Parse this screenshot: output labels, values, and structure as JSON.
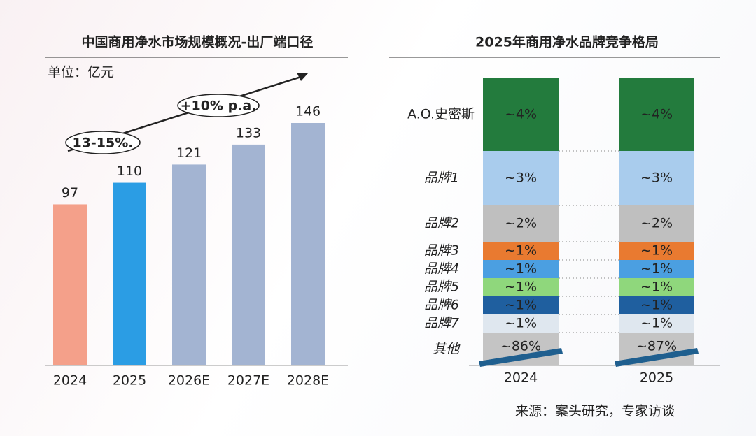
{
  "chart_data": [
    {
      "type": "bar",
      "title": "中国商用净水市场规模概况-出厂端口径",
      "subtitle": "单位：亿元",
      "categories": [
        "2024",
        "2025",
        "2026E",
        "2027E",
        "2028E"
      ],
      "values": [
        97,
        110,
        121,
        133,
        146
      ],
      "colors": [
        "#f4a08a",
        "#2b9de4",
        "#a3b4d2",
        "#a3b4d2",
        "#a3b4d2"
      ],
      "annotations": [
        "13-15%.",
        "+10% p.a."
      ]
    },
    {
      "type": "stacked-bar",
      "title": "2025年商用净水品牌竞争格局",
      "categories": [
        "2024",
        "2025"
      ],
      "series": [
        {
          "name": "A.O.史密斯",
          "color": "#237b3d",
          "values": [
            4,
            4
          ],
          "value_labels": [
            "~4%",
            "~4%"
          ]
        },
        {
          "name": "品牌1",
          "color": "#a9cced",
          "values": [
            3,
            3
          ],
          "value_labels": [
            "~3%",
            "~3%"
          ]
        },
        {
          "name": "品牌2",
          "color": "#bfbfbf",
          "values": [
            2,
            2
          ],
          "value_labels": [
            "~2%",
            "~2%"
          ]
        },
        {
          "name": "品牌3",
          "color": "#e97a30",
          "values": [
            1,
            1
          ],
          "value_labels": [
            "~1%",
            "~1%"
          ]
        },
        {
          "name": "品牌4",
          "color": "#4b9fe1",
          "values": [
            1,
            1
          ],
          "value_labels": [
            "~1%",
            "~1%"
          ]
        },
        {
          "name": "品牌5",
          "color": "#8fd77c",
          "values": [
            1,
            1
          ],
          "value_labels": [
            "~1%",
            "~1%"
          ]
        },
        {
          "name": "品牌6",
          "color": "#1f5f9f",
          "values": [
            1,
            1
          ],
          "value_labels": [
            "~1%",
            "~1%"
          ]
        },
        {
          "name": "品牌7",
          "color": "#dfe7ef",
          "values": [
            1,
            1
          ],
          "value_labels": [
            "~1%",
            "~1%"
          ]
        },
        {
          "name": "其他",
          "color": "#c4c4c4",
          "values": [
            86,
            87
          ],
          "value_labels": [
            "~86%",
            "~87%"
          ]
        }
      ],
      "source": "来源：案头研究，专家访谈"
    }
  ]
}
